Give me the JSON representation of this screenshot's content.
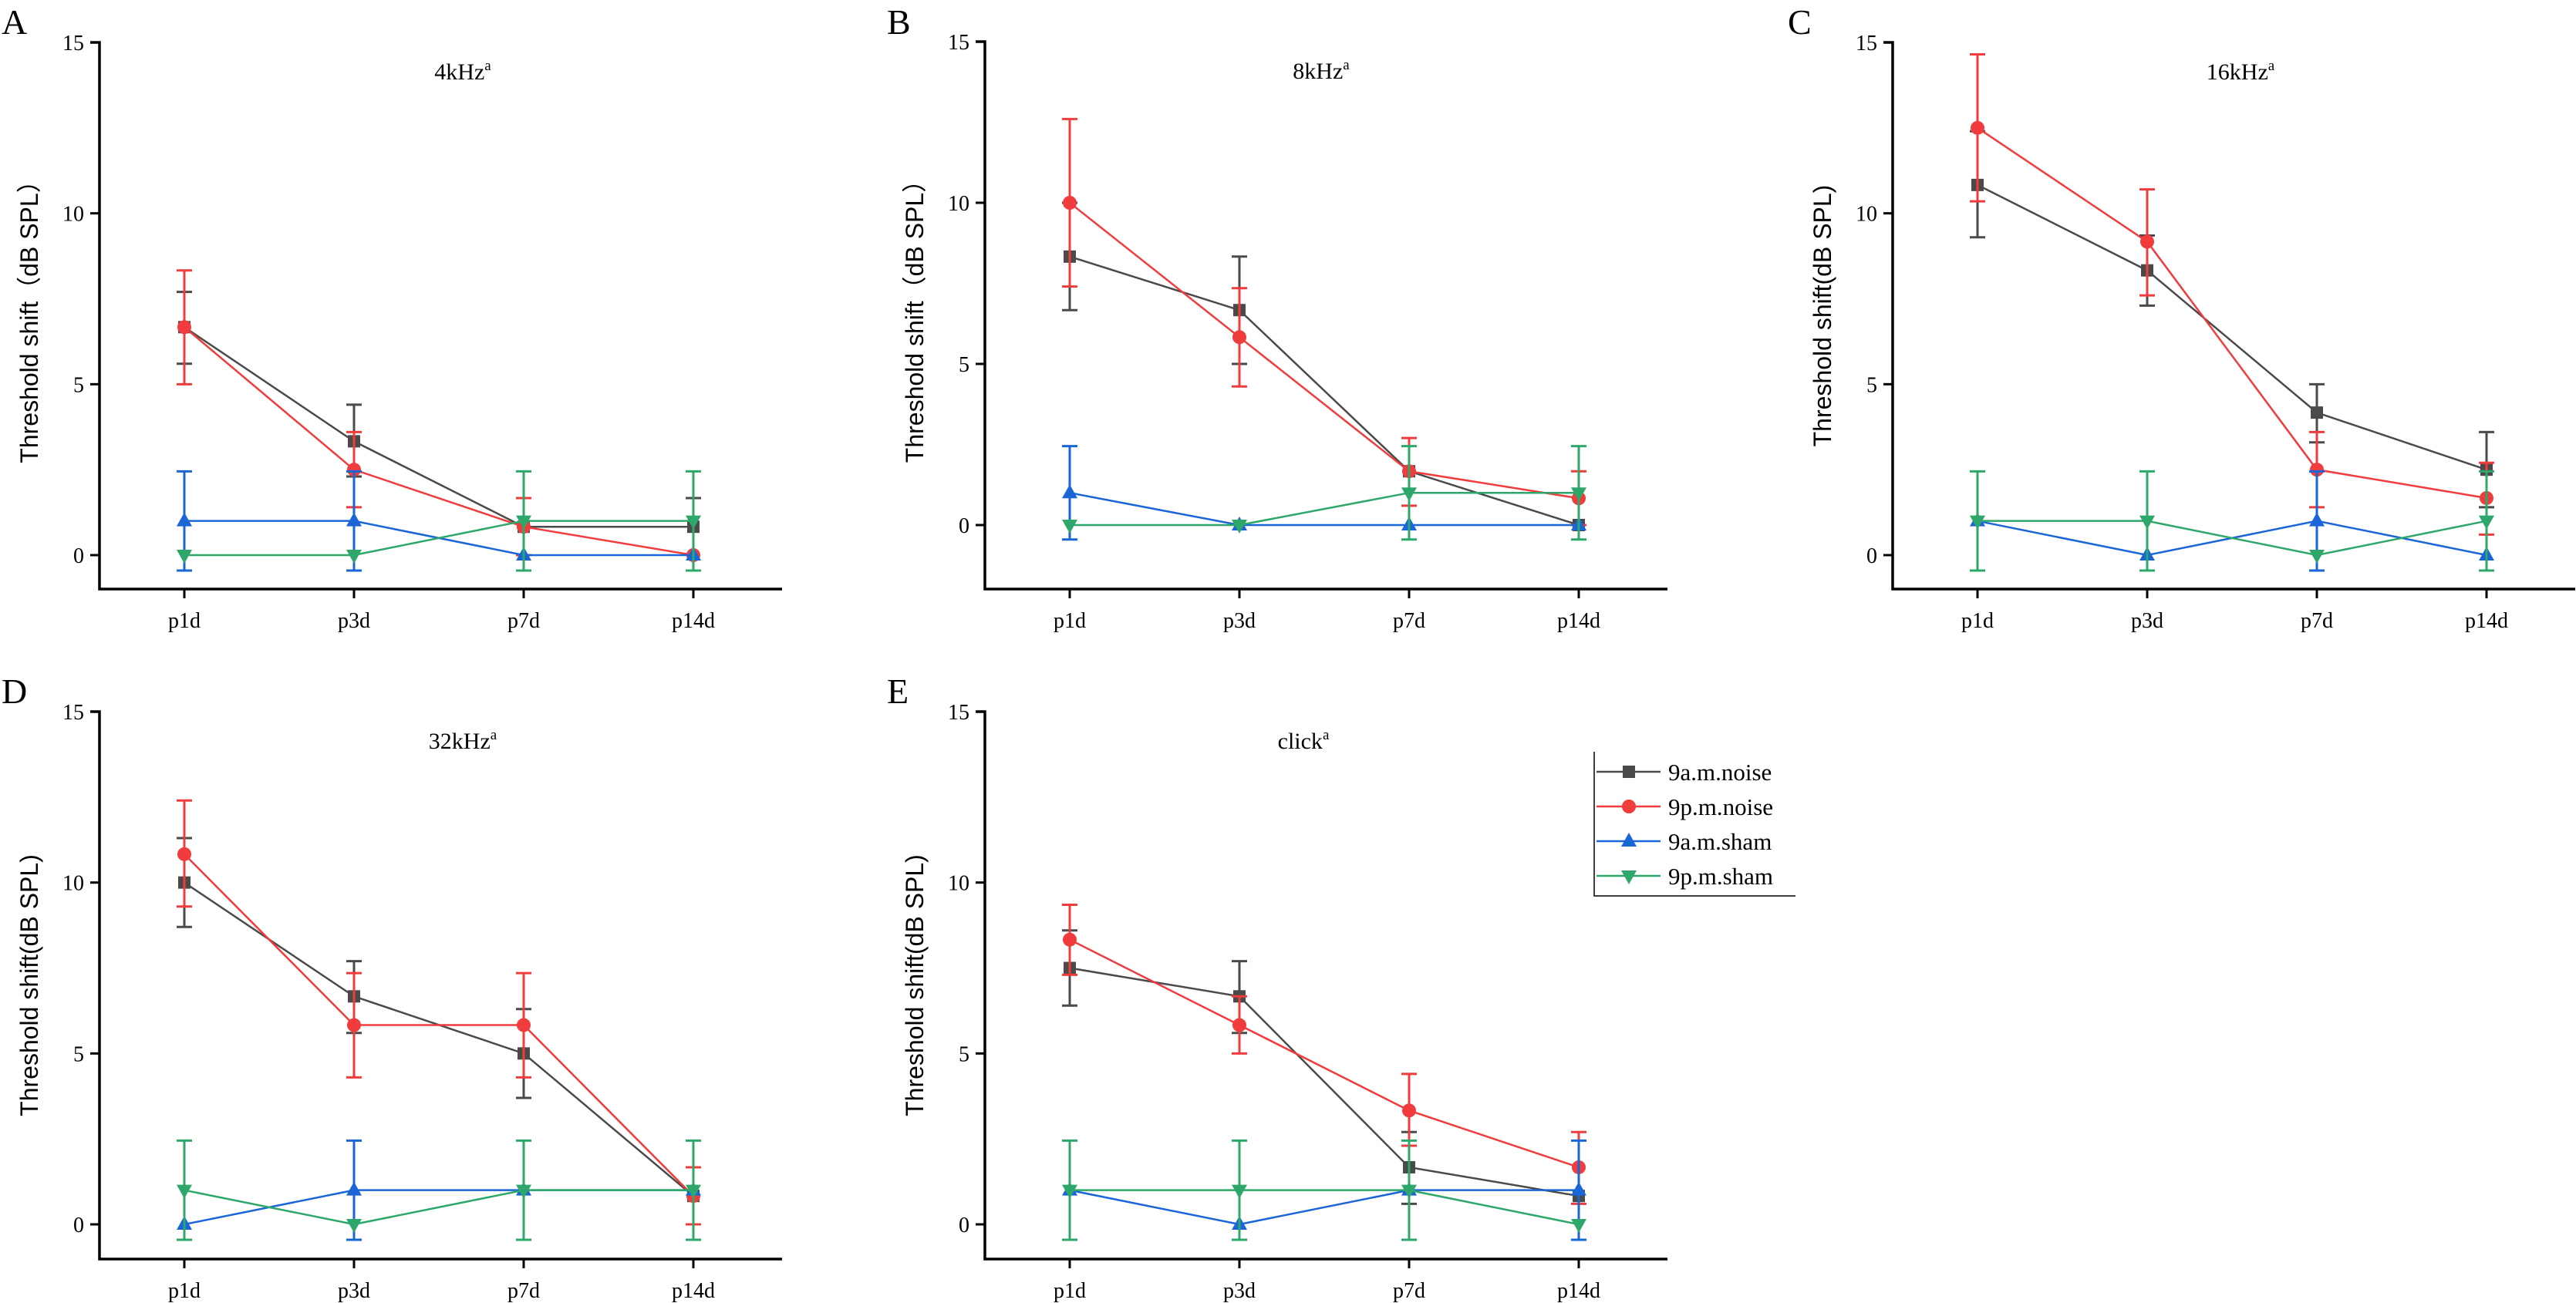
{
  "figure": {
    "legend": {
      "placement": "panel-E-right",
      "entries": [
        {
          "series": "am_noise",
          "label": "9a.m.noise",
          "marker": "square"
        },
        {
          "series": "pm_noise",
          "label": "9p.m.noise",
          "marker": "circle"
        },
        {
          "series": "am_sham",
          "label": "9a.m.sham",
          "marker": "triangle-up"
        },
        {
          "series": "pm_sham",
          "label": "9p.m.sham",
          "marker": "triangle-down"
        }
      ]
    },
    "series_colors": {
      "am_noise": "#4a4a4a",
      "pm_noise": "#f03c3c",
      "am_sham": "#1a66d6",
      "pm_sham": "#2ea86a"
    }
  },
  "chart_data": [
    {
      "panel": "A",
      "type": "line",
      "title": "4kHz",
      "title_superscript": "a",
      "xlabel": "",
      "ylabel": "Threshold shift（dB SPL）",
      "categories": [
        "p1d",
        "p3d",
        "p7d",
        "p14d"
      ],
      "ylim": [
        -1,
        15
      ],
      "yticks": [
        0,
        5,
        10,
        15
      ],
      "grid": false,
      "series": [
        {
          "key": "am_noise",
          "name": "9a.m.noise",
          "values": [
            6.67,
            3.33,
            0.83,
            0.83
          ],
          "err_low": [
            5.6,
            2.3,
            0.83,
            0.83
          ],
          "err_high": [
            7.7,
            4.4,
            0.83,
            1.67
          ]
        },
        {
          "key": "pm_noise",
          "name": "9p.m.noise",
          "values": [
            6.67,
            2.5,
            0.83,
            0
          ],
          "err_low": [
            5.0,
            1.4,
            0,
            0
          ],
          "err_high": [
            8.33,
            3.6,
            1.67,
            0
          ]
        },
        {
          "key": "am_sham",
          "name": "9a.m.sham",
          "values": [
            1,
            1,
            0,
            0
          ],
          "err_low": [
            -0.45,
            -0.45,
            0,
            0
          ],
          "err_high": [
            2.45,
            2.45,
            0,
            0
          ]
        },
        {
          "key": "pm_sham",
          "name": "9p.m.sham",
          "values": [
            0,
            0,
            1,
            1
          ],
          "err_low": [
            0,
            0,
            -0.45,
            -0.45
          ],
          "err_high": [
            0,
            0,
            2.45,
            2.45
          ]
        }
      ]
    },
    {
      "panel": "B",
      "type": "line",
      "title": "8kHz",
      "title_superscript": "a",
      "xlabel": "",
      "ylabel": "Threshold shift（dB SPL）",
      "categories": [
        "p1d",
        "p3d",
        "p7d",
        "p14d"
      ],
      "ylim": [
        -2,
        15
      ],
      "yticks": [
        0,
        5,
        10,
        15
      ],
      "grid": false,
      "series": [
        {
          "key": "am_noise",
          "name": "9a.m.noise",
          "values": [
            8.33,
            6.67,
            1.67,
            0
          ],
          "err_low": [
            6.67,
            5.0,
            1.67,
            0
          ],
          "err_high": [
            10.0,
            8.33,
            1.67,
            0
          ]
        },
        {
          "key": "pm_noise",
          "name": "9p.m.noise",
          "values": [
            10.0,
            5.83,
            1.67,
            0.83
          ],
          "err_low": [
            7.4,
            4.3,
            0.6,
            0
          ],
          "err_high": [
            12.6,
            7.35,
            2.7,
            1.67
          ]
        },
        {
          "key": "am_sham",
          "name": "9a.m.sham",
          "values": [
            1,
            0,
            0,
            0
          ],
          "err_low": [
            -0.45,
            0,
            0,
            0
          ],
          "err_high": [
            2.45,
            0,
            0,
            0
          ]
        },
        {
          "key": "pm_sham",
          "name": "9p.m.sham",
          "values": [
            0,
            0,
            1,
            1
          ],
          "err_low": [
            0,
            0,
            -0.45,
            -0.45
          ],
          "err_high": [
            0,
            0,
            2.45,
            2.45
          ]
        }
      ]
    },
    {
      "panel": "C",
      "type": "line",
      "title": "16kHz",
      "title_superscript": "a",
      "xlabel": "",
      "ylabel": "Threshold shift(dB SPL)",
      "categories": [
        "p1d",
        "p3d",
        "p7d",
        "p14d"
      ],
      "ylim": [
        -1,
        15
      ],
      "yticks": [
        0,
        5,
        10,
        15
      ],
      "grid": false,
      "series": [
        {
          "key": "am_noise",
          "name": "9a.m.noise",
          "values": [
            10.83,
            8.33,
            4.17,
            2.5
          ],
          "err_low": [
            9.3,
            7.3,
            3.3,
            1.4
          ],
          "err_high": [
            12.4,
            9.35,
            5.0,
            3.6
          ]
        },
        {
          "key": "pm_noise",
          "name": "9p.m.noise",
          "values": [
            12.5,
            9.17,
            2.5,
            1.67
          ],
          "err_low": [
            10.35,
            7.6,
            1.4,
            0.6
          ],
          "err_high": [
            14.65,
            10.7,
            3.6,
            2.7
          ]
        },
        {
          "key": "am_sham",
          "name": "9a.m.sham",
          "values": [
            1,
            0,
            1,
            0
          ],
          "err_low": [
            1,
            0,
            -0.45,
            0
          ],
          "err_high": [
            1,
            0,
            2.45,
            0
          ]
        },
        {
          "key": "pm_sham",
          "name": "9p.m.sham",
          "values": [
            1,
            1,
            0,
            1
          ],
          "err_low": [
            -0.45,
            -0.45,
            0,
            -0.45
          ],
          "err_high": [
            2.45,
            2.45,
            0,
            2.45
          ]
        }
      ]
    },
    {
      "panel": "D",
      "type": "line",
      "title": "32kHz",
      "title_superscript": "a",
      "xlabel": "",
      "ylabel": "Threshold shift(dB SPL)",
      "categories": [
        "p1d",
        "p3d",
        "p7d",
        "p14d"
      ],
      "ylim": [
        -1,
        15
      ],
      "yticks": [
        0,
        5,
        10,
        15
      ],
      "grid": false,
      "series": [
        {
          "key": "am_noise",
          "name": "9a.m.noise",
          "values": [
            10.0,
            6.67,
            5.0,
            0.83
          ],
          "err_low": [
            8.7,
            5.6,
            3.7,
            0.83
          ],
          "err_high": [
            11.3,
            7.7,
            6.3,
            0.83
          ]
        },
        {
          "key": "pm_noise",
          "name": "9p.m.noise",
          "values": [
            10.83,
            5.83,
            5.83,
            0.83
          ],
          "err_low": [
            9.3,
            4.3,
            4.3,
            0
          ],
          "err_high": [
            12.4,
            7.35,
            7.35,
            1.67
          ]
        },
        {
          "key": "am_sham",
          "name": "9a.m.sham",
          "values": [
            0,
            1,
            1,
            1
          ],
          "err_low": [
            0,
            -0.45,
            1,
            1
          ],
          "err_high": [
            0,
            2.45,
            1,
            1
          ]
        },
        {
          "key": "pm_sham",
          "name": "9p.m.sham",
          "values": [
            1,
            0,
            1,
            1
          ],
          "err_low": [
            -0.45,
            0,
            -0.45,
            -0.45
          ],
          "err_high": [
            2.45,
            0,
            2.45,
            2.45
          ]
        }
      ]
    },
    {
      "panel": "E",
      "type": "line",
      "title": "click",
      "title_superscript": "a",
      "xlabel": "",
      "ylabel": "Threshold shift(dB SPL)",
      "categories": [
        "p1d",
        "p3d",
        "p7d",
        "p14d"
      ],
      "ylim": [
        -1,
        15
      ],
      "yticks": [
        0,
        5,
        10,
        15
      ],
      "grid": false,
      "series": [
        {
          "key": "am_noise",
          "name": "9a.m.noise",
          "values": [
            7.5,
            6.67,
            1.67,
            0.83
          ],
          "err_low": [
            6.4,
            5.6,
            0.6,
            0.83
          ],
          "err_high": [
            8.6,
            7.7,
            2.7,
            0.83
          ]
        },
        {
          "key": "pm_noise",
          "name": "9p.m.noise",
          "values": [
            8.33,
            5.83,
            3.33,
            1.67
          ],
          "err_low": [
            7.3,
            5.0,
            2.3,
            0.6
          ],
          "err_high": [
            9.35,
            6.67,
            4.4,
            2.7
          ]
        },
        {
          "key": "am_sham",
          "name": "9a.m.sham",
          "values": [
            1,
            0,
            1,
            1
          ],
          "err_low": [
            1,
            0,
            1,
            -0.45
          ],
          "err_high": [
            1,
            0,
            1,
            2.45
          ]
        },
        {
          "key": "pm_sham",
          "name": "9p.m.sham",
          "values": [
            1,
            1,
            1,
            0
          ],
          "err_low": [
            -0.45,
            -0.45,
            -0.45,
            0
          ],
          "err_high": [
            2.45,
            2.45,
            2.45,
            0
          ]
        }
      ]
    }
  ]
}
